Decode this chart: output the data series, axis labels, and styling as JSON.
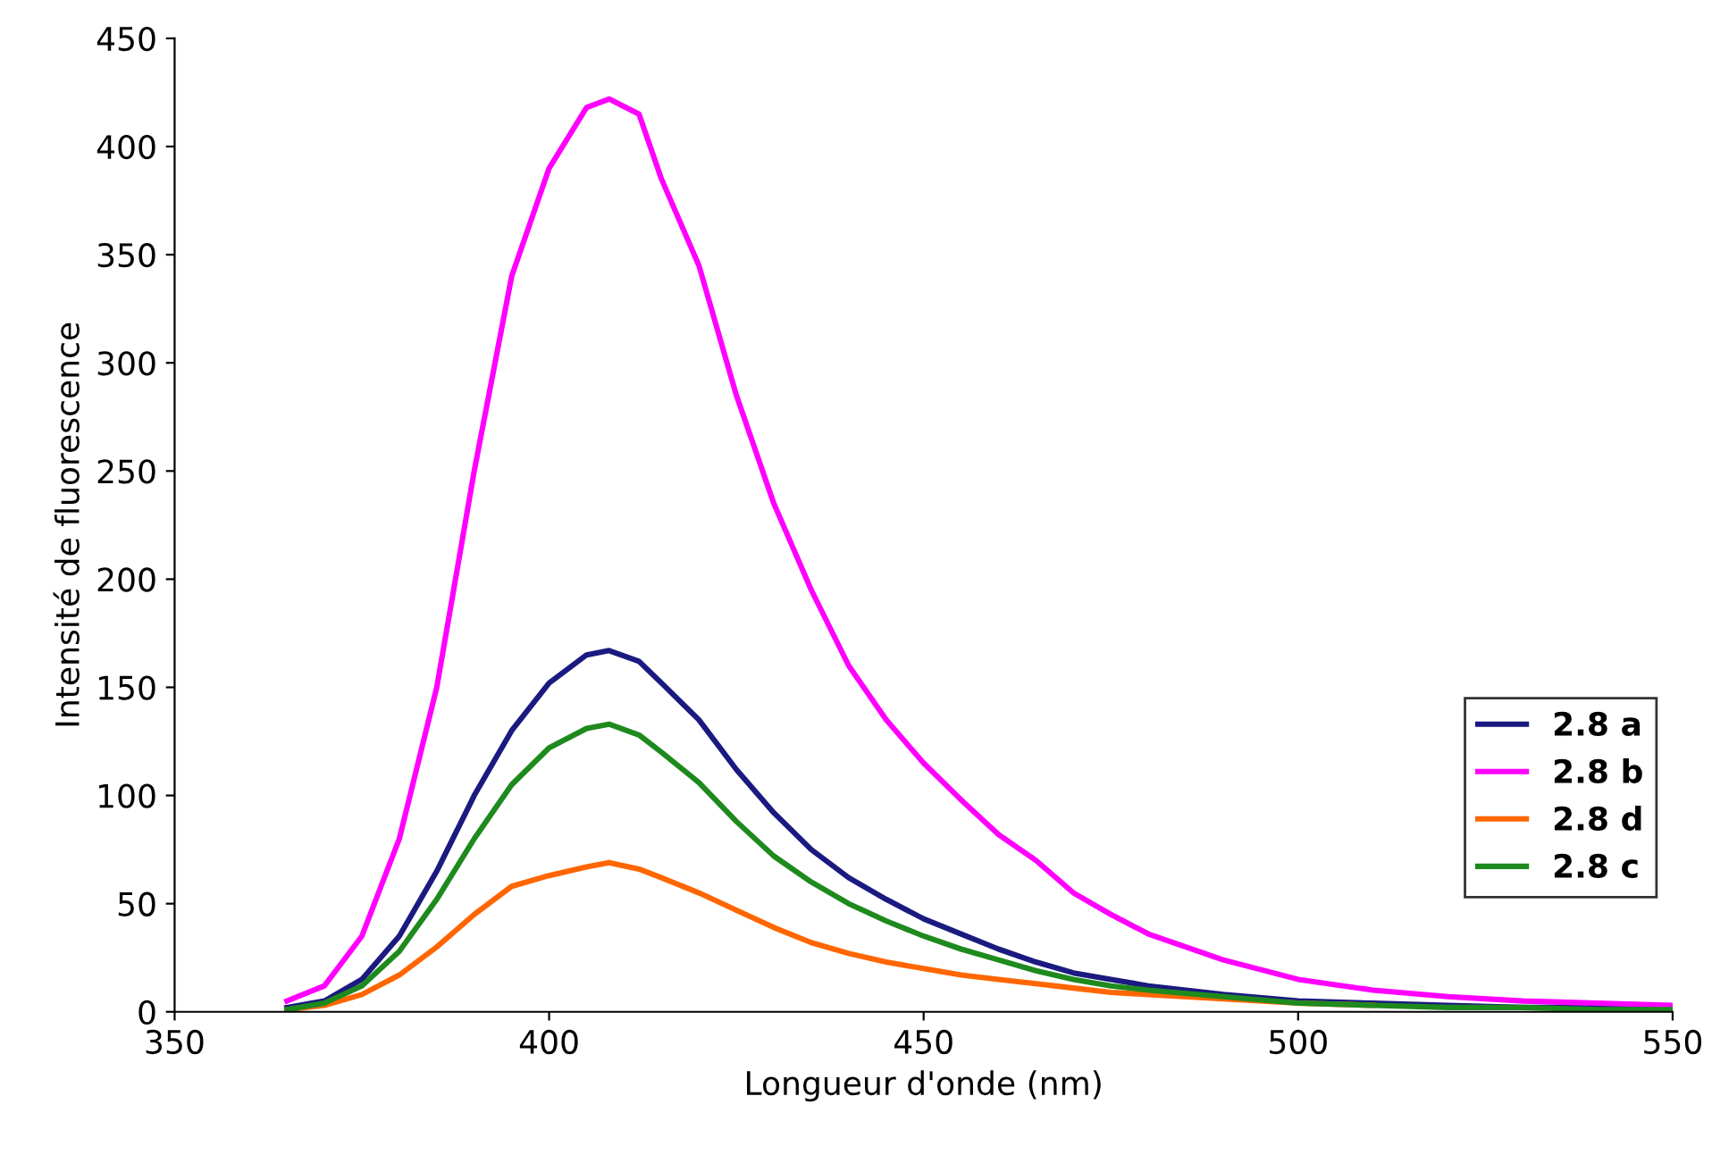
{
  "chart_data": {
    "type": "line",
    "xlabel": "Longueur d'onde (nm)",
    "ylabel": "Intensité de fluorescence",
    "xlim": [
      350,
      550
    ],
    "ylim": [
      0,
      450
    ],
    "xticks": [
      350,
      400,
      450,
      500,
      550
    ],
    "yticks": [
      0,
      50,
      100,
      150,
      200,
      250,
      300,
      350,
      400,
      450
    ],
    "grid": false,
    "legend": "right",
    "marker": "none",
    "line_style": "solid",
    "x": [
      365,
      370,
      375,
      380,
      385,
      390,
      395,
      400,
      405,
      408,
      412,
      415,
      420,
      425,
      430,
      435,
      440,
      445,
      450,
      455,
      460,
      465,
      470,
      475,
      480,
      490,
      500,
      510,
      520,
      530,
      540,
      550
    ],
    "series": [
      {
        "name": "2.8 a",
        "color": "#1a1a80",
        "values": [
          2,
          5,
          15,
          35,
          65,
          100,
          130,
          152,
          165,
          167,
          162,
          152,
          135,
          112,
          92,
          75,
          62,
          52,
          43,
          36,
          29,
          23,
          18,
          15,
          12,
          8,
          5,
          4,
          3,
          2,
          2,
          1
        ]
      },
      {
        "name": "2.8 b",
        "color": "#ff00ff",
        "values": [
          5,
          12,
          35,
          80,
          150,
          250,
          340,
          390,
          418,
          422,
          415,
          385,
          345,
          285,
          235,
          195,
          160,
          135,
          115,
          98,
          82,
          70,
          55,
          45,
          36,
          24,
          15,
          10,
          7,
          5,
          4,
          3
        ]
      },
      {
        "name": "2.8 d",
        "color": "#ff6600",
        "values": [
          1,
          3,
          8,
          17,
          30,
          45,
          58,
          63,
          67,
          69,
          66,
          62,
          55,
          47,
          39,
          32,
          27,
          23,
          20,
          17,
          15,
          13,
          11,
          9,
          8,
          6,
          4,
          3,
          null,
          null,
          null,
          null
        ]
      },
      {
        "name": "2.8 c",
        "color": "#1e8a1e",
        "values": [
          1,
          4,
          12,
          28,
          52,
          80,
          105,
          122,
          131,
          133,
          128,
          120,
          106,
          88,
          72,
          60,
          50,
          42,
          35,
          29,
          24,
          19,
          15,
          12,
          10,
          7,
          4,
          3,
          2,
          2,
          1,
          1
        ]
      }
    ]
  }
}
